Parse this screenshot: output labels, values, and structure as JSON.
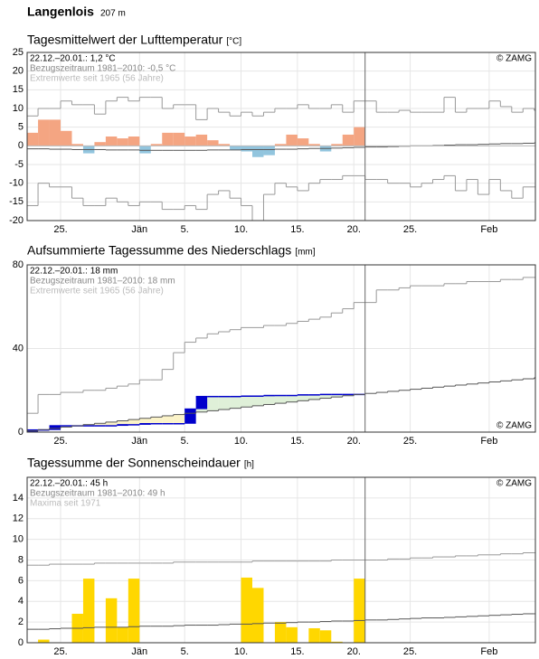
{
  "header": {
    "title": "Langenlois",
    "subtitle": "207 m"
  },
  "chart_data": [
    {
      "type": "bar",
      "title": "Tagesmittelwert der Lufttemperatur",
      "unit": "[°C]",
      "annotations": [
        {
          "text": "22.12.–20.01.: 1,2 °C",
          "color": "#000"
        },
        {
          "text": "Bezugszeitraum 1981–2010: -0,5 °C",
          "color": "#888"
        },
        {
          "text": "Extremwerte seit 1965 (56 Jahre)",
          "color": "#bbb"
        }
      ],
      "copyright": "© ZAMG",
      "copyright_corner": "top-right",
      "categories": [
        null,
        null,
        null,
        "25.",
        null,
        null,
        null,
        null,
        null,
        null,
        "Jän",
        null,
        null,
        null,
        "5.",
        null,
        null,
        null,
        null,
        "10.",
        null,
        null,
        null,
        null,
        "15.",
        null,
        null,
        null,
        null,
        "20.",
        null,
        null,
        null,
        null,
        "25.",
        null,
        null,
        null,
        null,
        null,
        null,
        "Feb",
        null,
        null,
        null,
        null
      ],
      "ylim": [
        -20,
        25
      ],
      "yticks": [
        -20,
        -15,
        -10,
        -5,
        0,
        5,
        10,
        15,
        20,
        25
      ],
      "grid": true,
      "series": [
        {
          "type": "bar",
          "color": "#f4a582",
          "color_negative": "#92c5de",
          "values": [
            3.5,
            7,
            7,
            4,
            0.5,
            -2,
            1,
            2.5,
            2,
            2.5,
            -2,
            0.5,
            3.5,
            3.5,
            2.5,
            3,
            1.5,
            0.5,
            -1,
            -1.5,
            -3,
            -2.5,
            0.5,
            3,
            2,
            0.5,
            -1.5,
            0.5,
            3,
            5,
            null,
            null,
            null,
            null,
            null,
            null,
            null,
            null,
            null,
            null,
            null,
            null,
            null,
            null,
            null,
            null
          ]
        },
        {
          "type": "step",
          "color": "#999",
          "values": [
            8,
            10,
            10,
            12,
            11,
            11,
            8.5,
            12,
            13,
            12,
            13,
            13,
            10,
            11,
            11,
            7,
            10,
            9,
            8,
            9,
            8,
            9,
            10,
            10,
            11,
            10,
            10,
            11,
            9,
            12,
            12,
            9,
            9,
            9.5,
            9,
            9,
            9,
            13,
            9,
            10,
            10,
            12,
            10.5,
            9,
            10,
            9.5
          ]
        },
        {
          "type": "step",
          "color": "#999",
          "values": [
            -16,
            -10,
            -11,
            -11,
            -14,
            -16,
            -16,
            -14,
            -15,
            -16,
            -15,
            -15,
            -17,
            -17,
            -16,
            -17,
            -13,
            -12,
            -14,
            -16,
            -20,
            -13,
            -10,
            -11,
            -12,
            -10,
            -9,
            -9,
            -8,
            -8,
            -9,
            -9,
            -10,
            -10,
            -11,
            -10,
            -9,
            -8,
            -12,
            -9,
            -13,
            -9,
            -12,
            -14,
            -11,
            -11
          ]
        },
        {
          "type": "step",
          "color": "#555",
          "values": [
            -0.8,
            -0.8,
            -0.9,
            -0.9,
            -1,
            -1,
            -1,
            -1.1,
            -1.1,
            -1.1,
            -1.2,
            -1.2,
            -1.2,
            -1.2,
            -1.2,
            -1.2,
            -1.1,
            -1.1,
            -1.1,
            -1,
            -1,
            -1,
            -0.9,
            -0.9,
            -0.8,
            -0.7,
            -0.7,
            -0.6,
            -0.5,
            -0.4,
            -0.3,
            -0.3,
            -0.2,
            -0.1,
            0,
            0,
            0.1,
            0.2,
            0.3,
            0.3,
            0.4,
            0.5,
            0.6,
            0.6,
            0.7,
            0.8
          ]
        }
      ]
    },
    {
      "type": "line",
      "title": "Aufsummierte Tagessumme des Niederschlags",
      "unit": "[mm]",
      "annotations": [
        {
          "text": "22.12.–20.01.: 18 mm",
          "color": "#000"
        },
        {
          "text": "Bezugszeitraum 1981–2010: 18 mm",
          "color": "#888"
        },
        {
          "text": "Extremwerte seit 1965 (56 Jahre)",
          "color": "#bbb"
        }
      ],
      "copyright": "© ZAMG",
      "copyright_corner": "bottom-right",
      "categories": [
        null,
        null,
        null,
        "25.",
        null,
        null,
        null,
        null,
        null,
        null,
        "Jän",
        null,
        null,
        null,
        "5.",
        null,
        null,
        null,
        null,
        "10.",
        null,
        null,
        null,
        null,
        "15.",
        null,
        null,
        null,
        null,
        "20.",
        null,
        null,
        null,
        null,
        "25.",
        null,
        null,
        null,
        null,
        null,
        null,
        "Feb",
        null,
        null,
        null,
        null
      ],
      "ylim": [
        0,
        80
      ],
      "yticks": [
        0,
        40,
        80
      ],
      "grid": true,
      "series": [
        {
          "type": "cumulative",
          "color": "#0000cc",
          "fill_above": "#dff0d8",
          "fill_below": "#fbf3c8",
          "reference": 2,
          "values": [
            1,
            1,
            3,
            3,
            3,
            3,
            3,
            3,
            3.5,
            3.5,
            4,
            4,
            4,
            4,
            11,
            17,
            17,
            17,
            17,
            17.2,
            17.2,
            17.5,
            17.5,
            17.5,
            17.8,
            17.8,
            18,
            18,
            18,
            18,
            null,
            null,
            null,
            null,
            null,
            null,
            null,
            null,
            null,
            null,
            null,
            null,
            null,
            null,
            null,
            null
          ]
        },
        {
          "type": "step",
          "color": "#999",
          "values": [
            9,
            18,
            18,
            19,
            19,
            20,
            20,
            21,
            22,
            23,
            25,
            25,
            30,
            38,
            43,
            45,
            47,
            48,
            49,
            50,
            50,
            51,
            51,
            52,
            53,
            54,
            55,
            57,
            59,
            62,
            62,
            68,
            68,
            69,
            70,
            70,
            70,
            71,
            71,
            72,
            72,
            72,
            73,
            73,
            74,
            74
          ]
        },
        {
          "type": "step",
          "color": "#555",
          "values": [
            0.6,
            1.2,
            1.8,
            2.4,
            3,
            3.6,
            4.2,
            4.8,
            5.4,
            6,
            6.6,
            7.2,
            7.8,
            8.4,
            9,
            9.6,
            10.2,
            10.8,
            11.4,
            12,
            12.6,
            13.2,
            13.8,
            14.4,
            15,
            15.6,
            16.2,
            16.8,
            17.4,
            18,
            18.5,
            19,
            19.5,
            20,
            20.5,
            21,
            21.5,
            22,
            22.5,
            23,
            23.5,
            24,
            24.5,
            25,
            25.5,
            26
          ]
        }
      ]
    },
    {
      "type": "bar",
      "title": "Tagessumme der Sonnenscheindauer",
      "unit": "[h]",
      "annotations": [
        {
          "text": "22.12.–20.01.: 45 h",
          "color": "#000"
        },
        {
          "text": "Bezugszeitraum 1981–2010: 49 h",
          "color": "#888"
        },
        {
          "text": "Maxima seit 1971",
          "color": "#bbb"
        }
      ],
      "copyright": "© ZAMG",
      "copyright_corner": "top-right",
      "categories": [
        null,
        null,
        null,
        "25.",
        null,
        null,
        null,
        null,
        null,
        null,
        "Jän",
        null,
        null,
        null,
        "5.",
        null,
        null,
        null,
        null,
        "10.",
        null,
        null,
        null,
        null,
        "15.",
        null,
        null,
        null,
        null,
        "20.",
        null,
        null,
        null,
        null,
        "25.",
        null,
        null,
        null,
        null,
        null,
        null,
        "Feb",
        null,
        null,
        null,
        null
      ],
      "ylim": [
        0,
        16
      ],
      "yticks": [
        0,
        2,
        4,
        6,
        8,
        10,
        12,
        14
      ],
      "grid": true,
      "series": [
        {
          "type": "bar",
          "color": "#ffd700",
          "color_negative": "#ffd700",
          "values": [
            0,
            0.3,
            0,
            0,
            2.8,
            6.2,
            0,
            4.3,
            1.5,
            6.2,
            0,
            0,
            0,
            0,
            0,
            0,
            0,
            0,
            0,
            6.3,
            5.3,
            0,
            2,
            1.5,
            0,
            1.4,
            1.2,
            0.1,
            0,
            6.2,
            null,
            null,
            null,
            null,
            null,
            null,
            null,
            null,
            null,
            null,
            null,
            null,
            null,
            null,
            null,
            null
          ]
        },
        {
          "type": "step",
          "color": "#999",
          "values": [
            7.5,
            7.5,
            7.6,
            7.6,
            7.6,
            7.6,
            7.7,
            7.7,
            7.7,
            7.7,
            7.7,
            7.7,
            7.7,
            7.8,
            7.8,
            7.8,
            7.8,
            7.8,
            7.8,
            7.8,
            7.9,
            7.9,
            7.9,
            7.9,
            7.9,
            7.9,
            7.9,
            8,
            8,
            8,
            8,
            8,
            8.1,
            8.1,
            8.2,
            8.2,
            8.3,
            8.3,
            8.4,
            8.4,
            8.5,
            8.5,
            8.6,
            8.6,
            8.7,
            8.7
          ]
        },
        {
          "type": "step",
          "color": "#555",
          "values": [
            1.3,
            1.3,
            1.35,
            1.4,
            1.4,
            1.45,
            1.5,
            1.5,
            1.5,
            1.55,
            1.6,
            1.6,
            1.6,
            1.65,
            1.7,
            1.7,
            1.7,
            1.75,
            1.8,
            1.8,
            1.85,
            1.9,
            1.9,
            1.95,
            2,
            2,
            2.05,
            2.1,
            2.1,
            2.15,
            2.2,
            2.2,
            2.25,
            2.3,
            2.35,
            2.4,
            2.4,
            2.45,
            2.5,
            2.55,
            2.6,
            2.65,
            2.7,
            2.75,
            2.8,
            2.8
          ]
        }
      ]
    }
  ]
}
